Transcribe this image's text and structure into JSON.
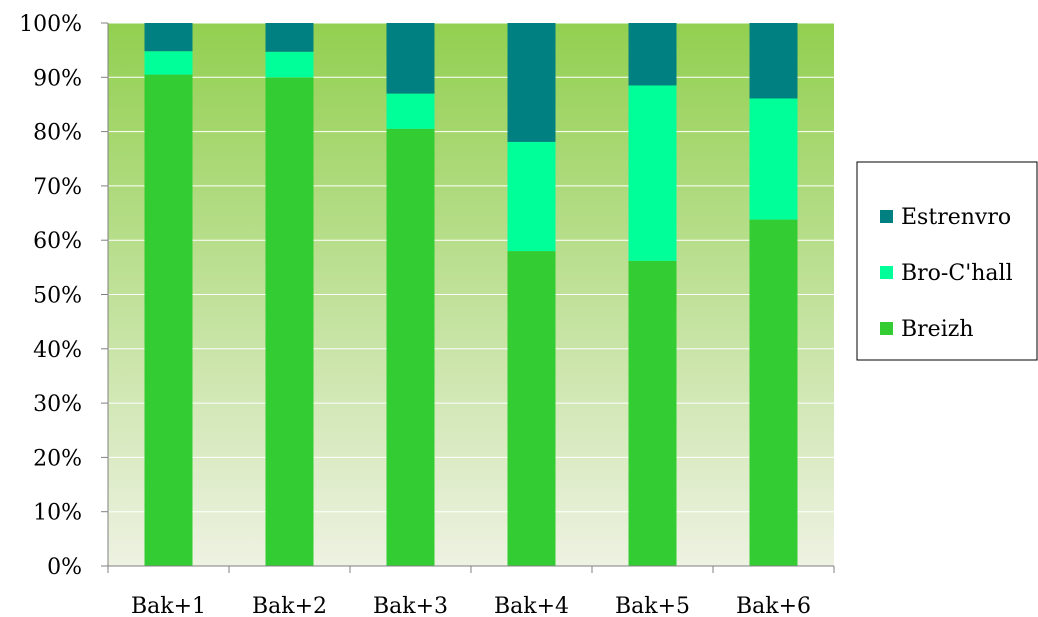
{
  "chart_data": {
    "type": "bar",
    "stacked": true,
    "percent": true,
    "categories": [
      "Bak+1",
      "Bak+2",
      "Bak+3",
      "Bak+4",
      "Bak+5",
      "Bak+6"
    ],
    "series": [
      {
        "name": "Breizh",
        "color": "#33cc33",
        "values": [
          90.5,
          90.0,
          80.5,
          58.0,
          56.2,
          63.8
        ]
      },
      {
        "name": "Bro-C'hall",
        "color": "#00ff99",
        "values": [
          4.3,
          4.7,
          6.5,
          20.1,
          32.3,
          22.3
        ]
      },
      {
        "name": "Estrenvro",
        "color": "#008080",
        "values": [
          5.2,
          5.3,
          13.0,
          21.9,
          11.5,
          13.9
        ]
      }
    ],
    "legend_order": [
      "Estrenvro",
      "Bro-C'hall",
      "Breizh"
    ],
    "ylim": [
      0,
      100
    ],
    "yticks": [
      "0%",
      "10%",
      "20%",
      "30%",
      "40%",
      "50%",
      "60%",
      "70%",
      "80%",
      "90%",
      "100%"
    ],
    "grid": true,
    "legend_position": "right",
    "plot_background": {
      "top": "#92d050",
      "bottom": "#eef2e2"
    }
  }
}
